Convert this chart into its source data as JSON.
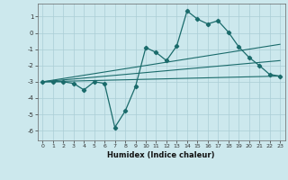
{
  "xlabel": "Humidex (Indice chaleur)",
  "background_color": "#cce8ed",
  "grid_color": "#aacdd5",
  "line_color": "#1a6b6b",
  "xlim": [
    -0.5,
    23.5
  ],
  "ylim": [
    -6.6,
    1.8
  ],
  "yticks": [
    1,
    0,
    -1,
    -2,
    -3,
    -4,
    -5,
    -6
  ],
  "xticks": [
    0,
    1,
    2,
    3,
    4,
    5,
    6,
    7,
    8,
    9,
    10,
    11,
    12,
    13,
    14,
    15,
    16,
    17,
    18,
    19,
    20,
    21,
    22,
    23
  ],
  "main_line_x": [
    0,
    1,
    2,
    3,
    4,
    5,
    6,
    7,
    8,
    9,
    10,
    11,
    12,
    13,
    14,
    15,
    16,
    17,
    18,
    19,
    20,
    21,
    22,
    23
  ],
  "main_line_y": [
    -3.0,
    -3.0,
    -3.0,
    -3.1,
    -3.5,
    -3.0,
    -3.1,
    -5.8,
    -4.8,
    -3.3,
    -0.9,
    -1.2,
    -1.7,
    -0.8,
    1.35,
    0.85,
    0.55,
    0.75,
    0.05,
    -0.85,
    -1.5,
    -2.0,
    -2.55,
    -2.65
  ],
  "upper_line_x": [
    0,
    23
  ],
  "upper_line_y": [
    -3.0,
    -0.7
  ],
  "mid_line_x": [
    0,
    23
  ],
  "mid_line_y": [
    -3.0,
    -1.7
  ],
  "lower_line_x": [
    0,
    23
  ],
  "lower_line_y": [
    -3.0,
    -2.65
  ]
}
